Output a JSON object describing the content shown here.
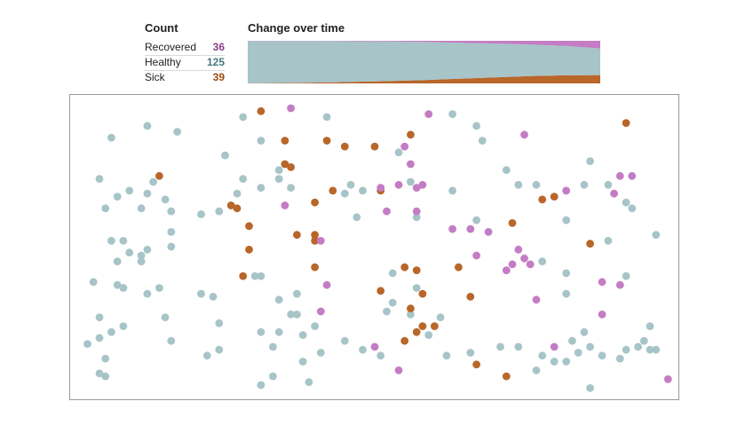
{
  "count_panel": {
    "title": "Count",
    "rows": [
      {
        "label": "Recovered",
        "value": "36"
      },
      {
        "label": "Healthy",
        "value": "125"
      },
      {
        "label": "Sick",
        "value": "39"
      }
    ]
  },
  "change_panel": {
    "title": "Change over time"
  },
  "colors": {
    "recovered": "#c47cc4",
    "healthy": "#a7c4c8",
    "sick": "#b8662a"
  },
  "chart_data": [
    {
      "type": "area",
      "title": "Change over time",
      "stacked": true,
      "normalized": true,
      "x": [
        0,
        0.1,
        0.2,
        0.3,
        0.4,
        0.5,
        0.6,
        0.7,
        0.8,
        0.9,
        1.0
      ],
      "series": [
        {
          "name": "Sick",
          "values": [
            0.005,
            0.01,
            0.02,
            0.035,
            0.055,
            0.08,
            0.11,
            0.14,
            0.17,
            0.19,
            0.195
          ]
        },
        {
          "name": "Healthy",
          "values": [
            0.99,
            0.985,
            0.975,
            0.955,
            0.93,
            0.895,
            0.845,
            0.795,
            0.745,
            0.69,
            0.625
          ]
        },
        {
          "name": "Recovered",
          "values": [
            0.005,
            0.005,
            0.005,
            0.01,
            0.015,
            0.025,
            0.045,
            0.065,
            0.085,
            0.12,
            0.18
          ]
        }
      ],
      "ylim": [
        0,
        1
      ]
    },
    {
      "type": "scatter",
      "xlim": [
        0,
        1
      ],
      "ylim": [
        0,
        1
      ],
      "series": [
        {
          "name": "Healthy",
          "points": [
            [
              0.06,
              0.87
            ],
            [
              0.12,
              0.91
            ],
            [
              0.17,
              0.89
            ],
            [
              0.25,
              0.81
            ],
            [
              0.31,
              0.86
            ],
            [
              0.28,
              0.94
            ],
            [
              0.34,
              0.76
            ],
            [
              0.42,
              0.94
            ],
            [
              0.54,
              0.82
            ],
            [
              0.63,
              0.95
            ],
            [
              0.67,
              0.91
            ],
            [
              0.68,
              0.86
            ],
            [
              0.04,
              0.73
            ],
            [
              0.05,
              0.63
            ],
            [
              0.07,
              0.67
            ],
            [
              0.09,
              0.69
            ],
            [
              0.11,
              0.63
            ],
            [
              0.13,
              0.72
            ],
            [
              0.12,
              0.68
            ],
            [
              0.15,
              0.66
            ],
            [
              0.16,
              0.62
            ],
            [
              0.21,
              0.61
            ],
            [
              0.24,
              0.62
            ],
            [
              0.28,
              0.73
            ],
            [
              0.27,
              0.68
            ],
            [
              0.34,
              0.73
            ],
            [
              0.31,
              0.7
            ],
            [
              0.36,
              0.7
            ],
            [
              0.47,
              0.6
            ],
            [
              0.45,
              0.68
            ],
            [
              0.46,
              0.71
            ],
            [
              0.48,
              0.69
            ],
            [
              0.57,
              0.6
            ],
            [
              0.56,
              0.72
            ],
            [
              0.63,
              0.69
            ],
            [
              0.67,
              0.59
            ],
            [
              0.72,
              0.76
            ],
            [
              0.74,
              0.71
            ],
            [
              0.77,
              0.71
            ],
            [
              0.82,
              0.59
            ],
            [
              0.85,
              0.71
            ],
            [
              0.86,
              0.79
            ],
            [
              0.89,
              0.71
            ],
            [
              0.92,
              0.65
            ],
            [
              0.93,
              0.63
            ],
            [
              0.97,
              0.54
            ],
            [
              0.78,
              0.45
            ],
            [
              0.89,
              0.52
            ],
            [
              0.08,
              0.52
            ],
            [
              0.09,
              0.48
            ],
            [
              0.07,
              0.45
            ],
            [
              0.11,
              0.47
            ],
            [
              0.12,
              0.49
            ],
            [
              0.16,
              0.5
            ],
            [
              0.16,
              0.55
            ],
            [
              0.11,
              0.45
            ],
            [
              0.07,
              0.37
            ],
            [
              0.03,
              0.38
            ],
            [
              0.08,
              0.36
            ],
            [
              0.06,
              0.52
            ],
            [
              0.04,
              0.26
            ],
            [
              0.08,
              0.23
            ],
            [
              0.04,
              0.19
            ],
            [
              0.06,
              0.21
            ],
            [
              0.02,
              0.17
            ],
            [
              0.05,
              0.12
            ],
            [
              0.05,
              0.06
            ],
            [
              0.04,
              0.07
            ],
            [
              0.14,
              0.36
            ],
            [
              0.12,
              0.34
            ],
            [
              0.15,
              0.26
            ],
            [
              0.16,
              0.18
            ],
            [
              0.21,
              0.34
            ],
            [
              0.23,
              0.33
            ],
            [
              0.24,
              0.24
            ],
            [
              0.24,
              0.15
            ],
            [
              0.22,
              0.13
            ],
            [
              0.3,
              0.4
            ],
            [
              0.31,
              0.4
            ],
            [
              0.34,
              0.32
            ],
            [
              0.37,
              0.34
            ],
            [
              0.37,
              0.27
            ],
            [
              0.34,
              0.21
            ],
            [
              0.33,
              0.16
            ],
            [
              0.31,
              0.21
            ],
            [
              0.36,
              0.27
            ],
            [
              0.31,
              0.03
            ],
            [
              0.33,
              0.06
            ],
            [
              0.38,
              0.2
            ],
            [
              0.4,
              0.23
            ],
            [
              0.41,
              0.14
            ],
            [
              0.45,
              0.18
            ],
            [
              0.48,
              0.15
            ],
            [
              0.51,
              0.13
            ],
            [
              0.52,
              0.28
            ],
            [
              0.53,
              0.31
            ],
            [
              0.57,
              0.36
            ],
            [
              0.56,
              0.27
            ],
            [
              0.59,
              0.2
            ],
            [
              0.61,
              0.26
            ],
            [
              0.66,
              0.14
            ],
            [
              0.62,
              0.13
            ],
            [
              0.71,
              0.16
            ],
            [
              0.74,
              0.16
            ],
            [
              0.78,
              0.13
            ],
            [
              0.82,
              0.11
            ],
            [
              0.83,
              0.18
            ],
            [
              0.84,
              0.14
            ],
            [
              0.86,
              0.16
            ],
            [
              0.88,
              0.13
            ],
            [
              0.91,
              0.12
            ],
            [
              0.92,
              0.15
            ],
            [
              0.94,
              0.16
            ],
            [
              0.96,
              0.23
            ],
            [
              0.95,
              0.18
            ],
            [
              0.96,
              0.15
            ],
            [
              0.97,
              0.15
            ],
            [
              0.82,
              0.41
            ],
            [
              0.82,
              0.34
            ],
            [
              0.85,
              0.21
            ],
            [
              0.86,
              0.02
            ],
            [
              0.92,
              0.4
            ],
            [
              0.77,
              0.08
            ],
            [
              0.8,
              0.11
            ],
            [
              0.53,
              0.41
            ],
            [
              0.38,
              0.11
            ],
            [
              0.39,
              0.04
            ]
          ]
        },
        {
          "name": "Sick",
          "points": [
            [
              0.14,
              0.74
            ],
            [
              0.31,
              0.96
            ],
            [
              0.35,
              0.86
            ],
            [
              0.35,
              0.78
            ],
            [
              0.36,
              0.77
            ],
            [
              0.42,
              0.86
            ],
            [
              0.45,
              0.84
            ],
            [
              0.5,
              0.84
            ],
            [
              0.56,
              0.88
            ],
            [
              0.27,
              0.63
            ],
            [
              0.26,
              0.64
            ],
            [
              0.29,
              0.57
            ],
            [
              0.37,
              0.54
            ],
            [
              0.4,
              0.54
            ],
            [
              0.4,
              0.52
            ],
            [
              0.28,
              0.4
            ],
            [
              0.29,
              0.49
            ],
            [
              0.4,
              0.43
            ],
            [
              0.4,
              0.65
            ],
            [
              0.43,
              0.69
            ],
            [
              0.51,
              0.69
            ],
            [
              0.55,
              0.43
            ],
            [
              0.57,
              0.42
            ],
            [
              0.58,
              0.34
            ],
            [
              0.51,
              0.35
            ],
            [
              0.56,
              0.29
            ],
            [
              0.57,
              0.21
            ],
            [
              0.6,
              0.23
            ],
            [
              0.64,
              0.43
            ],
            [
              0.66,
              0.33
            ],
            [
              0.73,
              0.58
            ],
            [
              0.78,
              0.66
            ],
            [
              0.8,
              0.67
            ],
            [
              0.86,
              0.51
            ],
            [
              0.92,
              0.92
            ],
            [
              0.58,
              0.23
            ],
            [
              0.67,
              0.1
            ],
            [
              0.72,
              0.06
            ],
            [
              0.55,
              0.18
            ]
          ]
        },
        {
          "name": "Recovered",
          "points": [
            [
              0.36,
              0.97
            ],
            [
              0.59,
              0.95
            ],
            [
              0.75,
              0.88
            ],
            [
              0.55,
              0.84
            ],
            [
              0.56,
              0.78
            ],
            [
              0.58,
              0.71
            ],
            [
              0.51,
              0.7
            ],
            [
              0.54,
              0.71
            ],
            [
              0.57,
              0.7
            ],
            [
              0.35,
              0.64
            ],
            [
              0.52,
              0.62
            ],
            [
              0.57,
              0.62
            ],
            [
              0.63,
              0.56
            ],
            [
              0.66,
              0.56
            ],
            [
              0.69,
              0.55
            ],
            [
              0.74,
              0.49
            ],
            [
              0.75,
              0.46
            ],
            [
              0.76,
              0.44
            ],
            [
              0.67,
              0.47
            ],
            [
              0.72,
              0.42
            ],
            [
              0.73,
              0.44
            ],
            [
              0.41,
              0.52
            ],
            [
              0.42,
              0.37
            ],
            [
              0.41,
              0.28
            ],
            [
              0.77,
              0.32
            ],
            [
              0.88,
              0.38
            ],
            [
              0.91,
              0.37
            ],
            [
              0.88,
              0.27
            ],
            [
              0.8,
              0.16
            ],
            [
              0.9,
              0.68
            ],
            [
              0.91,
              0.74
            ],
            [
              0.93,
              0.74
            ],
            [
              0.82,
              0.69
            ],
            [
              0.5,
              0.16
            ],
            [
              0.54,
              0.08
            ],
            [
              0.99,
              0.05
            ]
          ]
        }
      ]
    }
  ]
}
